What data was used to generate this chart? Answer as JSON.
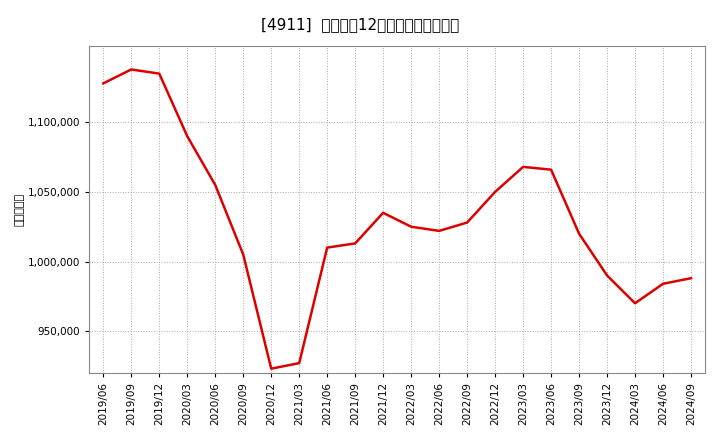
{
  "title": "[4911]  売上高の12か月移動合計の推移",
  "ylabel": "（百万円）",
  "line_color": "#dd0000",
  "line_width": 1.8,
  "background_color": "#ffffff",
  "plot_bg_color": "#ffffff",
  "grid_color": "#aaaaaa",
  "ylim": [
    920000,
    1155000
  ],
  "yticks": [
    950000,
    1000000,
    1050000,
    1100000
  ],
  "dates": [
    "2019/06",
    "2019/09",
    "2019/12",
    "2020/03",
    "2020/06",
    "2020/09",
    "2020/12",
    "2021/03",
    "2021/06",
    "2021/09",
    "2021/12",
    "2022/03",
    "2022/06",
    "2022/09",
    "2022/12",
    "2023/03",
    "2023/06",
    "2023/09",
    "2023/12",
    "2024/03",
    "2024/06",
    "2024/09"
  ],
  "values": [
    1128000,
    1138000,
    1135000,
    1090000,
    1055000,
    1005000,
    923000,
    927000,
    1010000,
    1013000,
    1035000,
    1025000,
    1022000,
    1028000,
    1050000,
    1068000,
    1066000,
    1020000,
    990000,
    970000,
    984000,
    988000
  ],
  "xtick_labels": [
    "2019/06",
    "2019/09",
    "2019/12",
    "2020/03",
    "2020/06",
    "2020/09",
    "2020/12",
    "2021/03",
    "2021/06",
    "2021/09",
    "2021/12",
    "2022/03",
    "2022/06",
    "2022/09",
    "2022/12",
    "2023/03",
    "2023/06",
    "2023/09",
    "2023/12",
    "2024/03",
    "2024/06",
    "2024/09"
  ],
  "title_fontsize": 11,
  "label_fontsize": 8,
  "tick_fontsize": 7.5
}
